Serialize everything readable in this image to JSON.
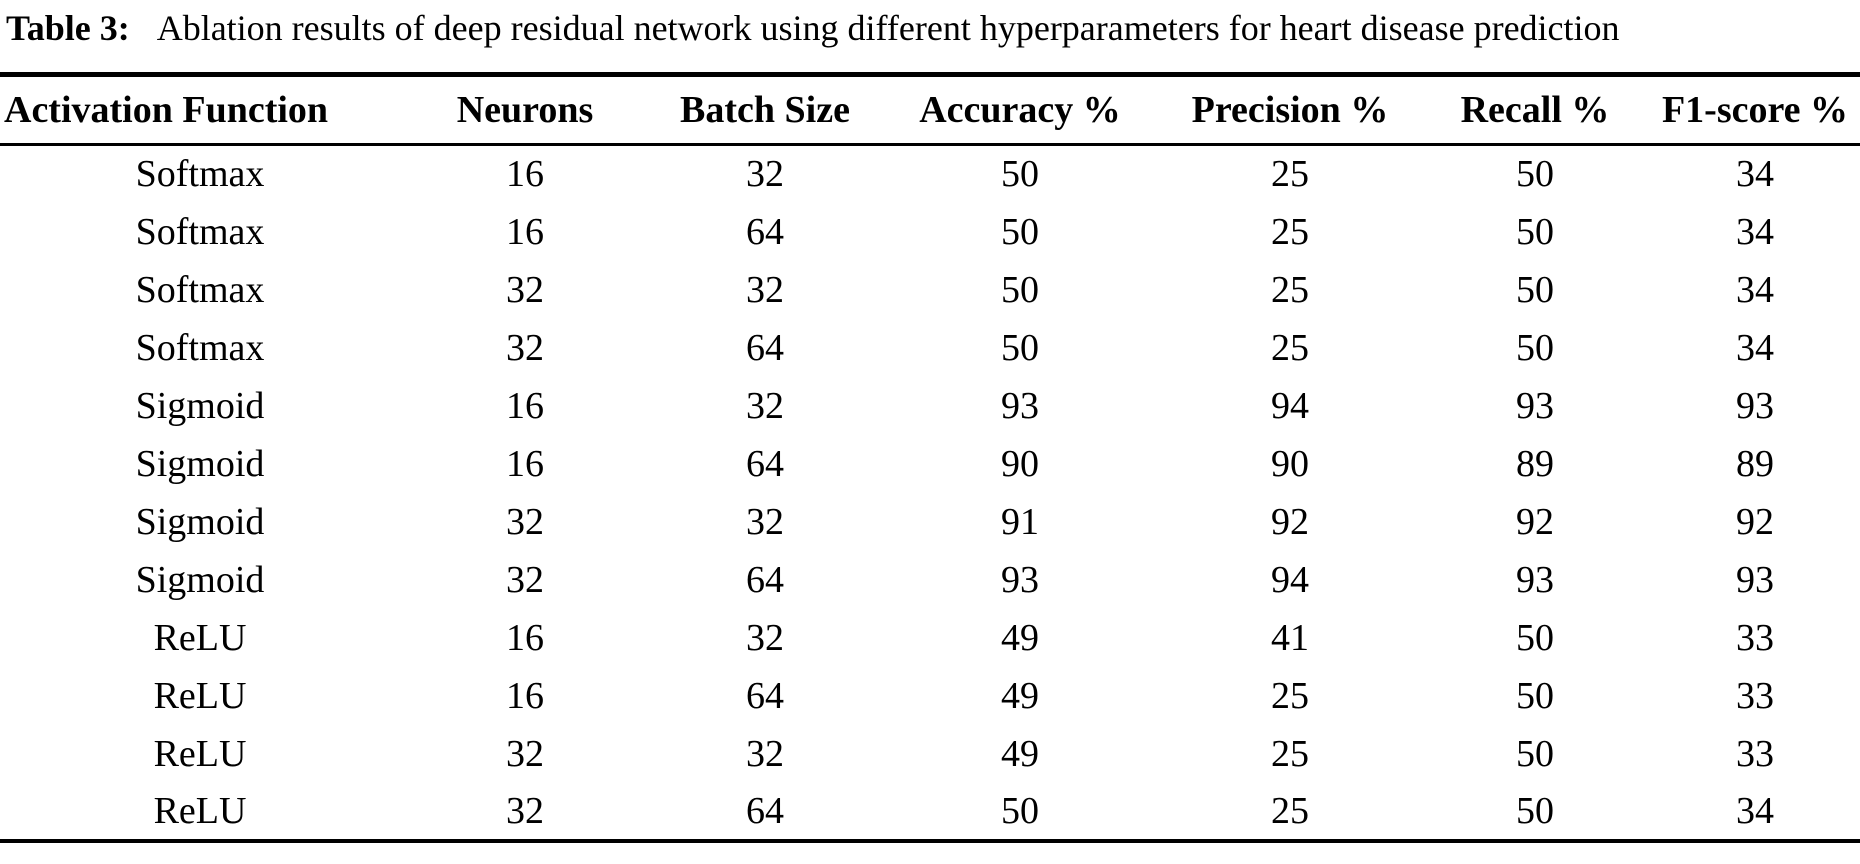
{
  "caption": {
    "label": "Table 3:",
    "text": "Ablation results of deep residual network using different hyperparameters for heart disease prediction"
  },
  "colors": {
    "text": "#000000",
    "background": "#ffffff",
    "rule": "#000000"
  },
  "table": {
    "columns": [
      "Activation Function",
      "Neurons",
      "Batch Size",
      "Accuracy %",
      "Precision %",
      "Recall %",
      "F1-score %"
    ],
    "rows": [
      [
        "Softmax",
        "16",
        "32",
        "50",
        "25",
        "50",
        "34"
      ],
      [
        "Softmax",
        "16",
        "64",
        "50",
        "25",
        "50",
        "34"
      ],
      [
        "Softmax",
        "32",
        "32",
        "50",
        "25",
        "50",
        "34"
      ],
      [
        "Softmax",
        "32",
        "64",
        "50",
        "25",
        "50",
        "34"
      ],
      [
        "Sigmoid",
        "16",
        "32",
        "93",
        "94",
        "93",
        "93"
      ],
      [
        "Sigmoid",
        "16",
        "64",
        "90",
        "90",
        "89",
        "89"
      ],
      [
        "Sigmoid",
        "32",
        "32",
        "91",
        "92",
        "92",
        "92"
      ],
      [
        "Sigmoid",
        "32",
        "64",
        "93",
        "94",
        "93",
        "93"
      ],
      [
        "ReLU",
        "16",
        "32",
        "49",
        "41",
        "50",
        "33"
      ],
      [
        "ReLU",
        "16",
        "64",
        "49",
        "25",
        "50",
        "33"
      ],
      [
        "ReLU",
        "32",
        "32",
        "49",
        "25",
        "50",
        "33"
      ],
      [
        "ReLU",
        "32",
        "64",
        "50",
        "25",
        "50",
        "34"
      ]
    ]
  }
}
